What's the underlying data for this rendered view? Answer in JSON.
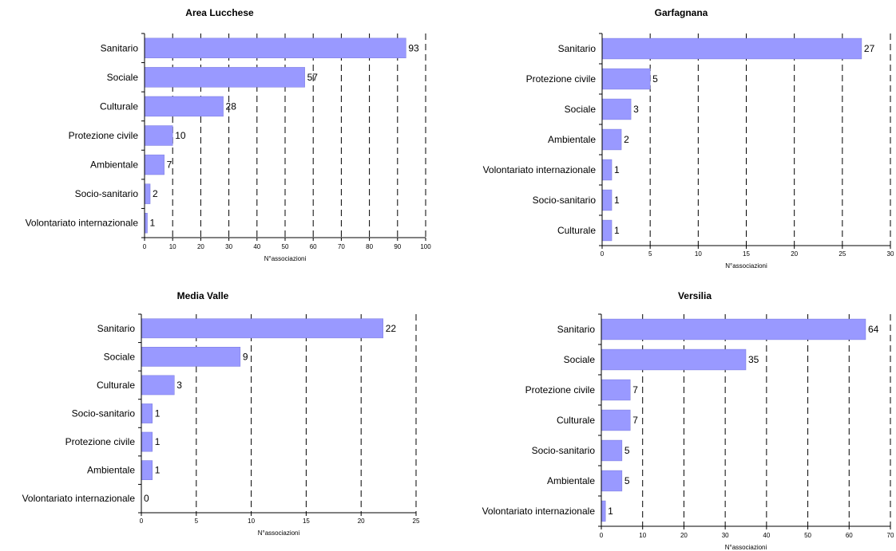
{
  "chart_data": [
    {
      "type": "bar",
      "orientation": "horizontal",
      "title": "Area Lucchese",
      "xlabel": "N°associazioni",
      "categories": [
        "Sanitario",
        "Sociale",
        "Culturale",
        "Protezione civile",
        "Ambientale",
        "Socio-sanitario",
        "Volontariato internazionale"
      ],
      "values": [
        93,
        57,
        28,
        10,
        7,
        2,
        1
      ],
      "xlim": [
        0,
        100
      ],
      "xticks": [
        0,
        10,
        20,
        30,
        40,
        50,
        60,
        70,
        80,
        90,
        100
      ],
      "grid": "vertical dashed",
      "color": "#9999ff"
    },
    {
      "type": "bar",
      "orientation": "horizontal",
      "title": "Garfagnana",
      "xlabel": "N°associazioni",
      "categories": [
        "Sanitario",
        "Protezione civile",
        "Sociale",
        "Ambientale",
        "Volontariato internazionale",
        "Socio-sanitario",
        "Culturale"
      ],
      "values": [
        27,
        5,
        3,
        2,
        1,
        1,
        1
      ],
      "xlim": [
        0,
        30
      ],
      "xticks": [
        0,
        5,
        10,
        15,
        20,
        25,
        30
      ],
      "grid": "vertical dashed",
      "color": "#9999ff"
    },
    {
      "type": "bar",
      "orientation": "horizontal",
      "title": "Media Valle",
      "xlabel": "N°associazioni",
      "categories": [
        "Sanitario",
        "Sociale",
        "Culturale",
        "Socio-sanitario",
        "Protezione civile",
        "Ambientale",
        "Volontariato internazionale"
      ],
      "values": [
        22,
        9,
        3,
        1,
        1,
        1,
        0
      ],
      "xlim": [
        0,
        25
      ],
      "xticks": [
        0,
        5,
        10,
        15,
        20,
        25
      ],
      "grid": "vertical dashed",
      "color": "#9999ff"
    },
    {
      "type": "bar",
      "orientation": "horizontal",
      "title": "Versilia",
      "xlabel": "N°associazioni",
      "categories": [
        "Sanitario",
        "Sociale",
        "Protezione civile",
        "Culturale",
        "Socio-sanitario",
        "Ambientale",
        "Volontariato internazionale"
      ],
      "values": [
        64,
        35,
        7,
        7,
        5,
        5,
        1
      ],
      "xlim": [
        0,
        70
      ],
      "xticks": [
        0,
        10,
        20,
        30,
        40,
        50,
        60,
        70
      ],
      "grid": "vertical dashed",
      "color": "#9999ff"
    }
  ]
}
